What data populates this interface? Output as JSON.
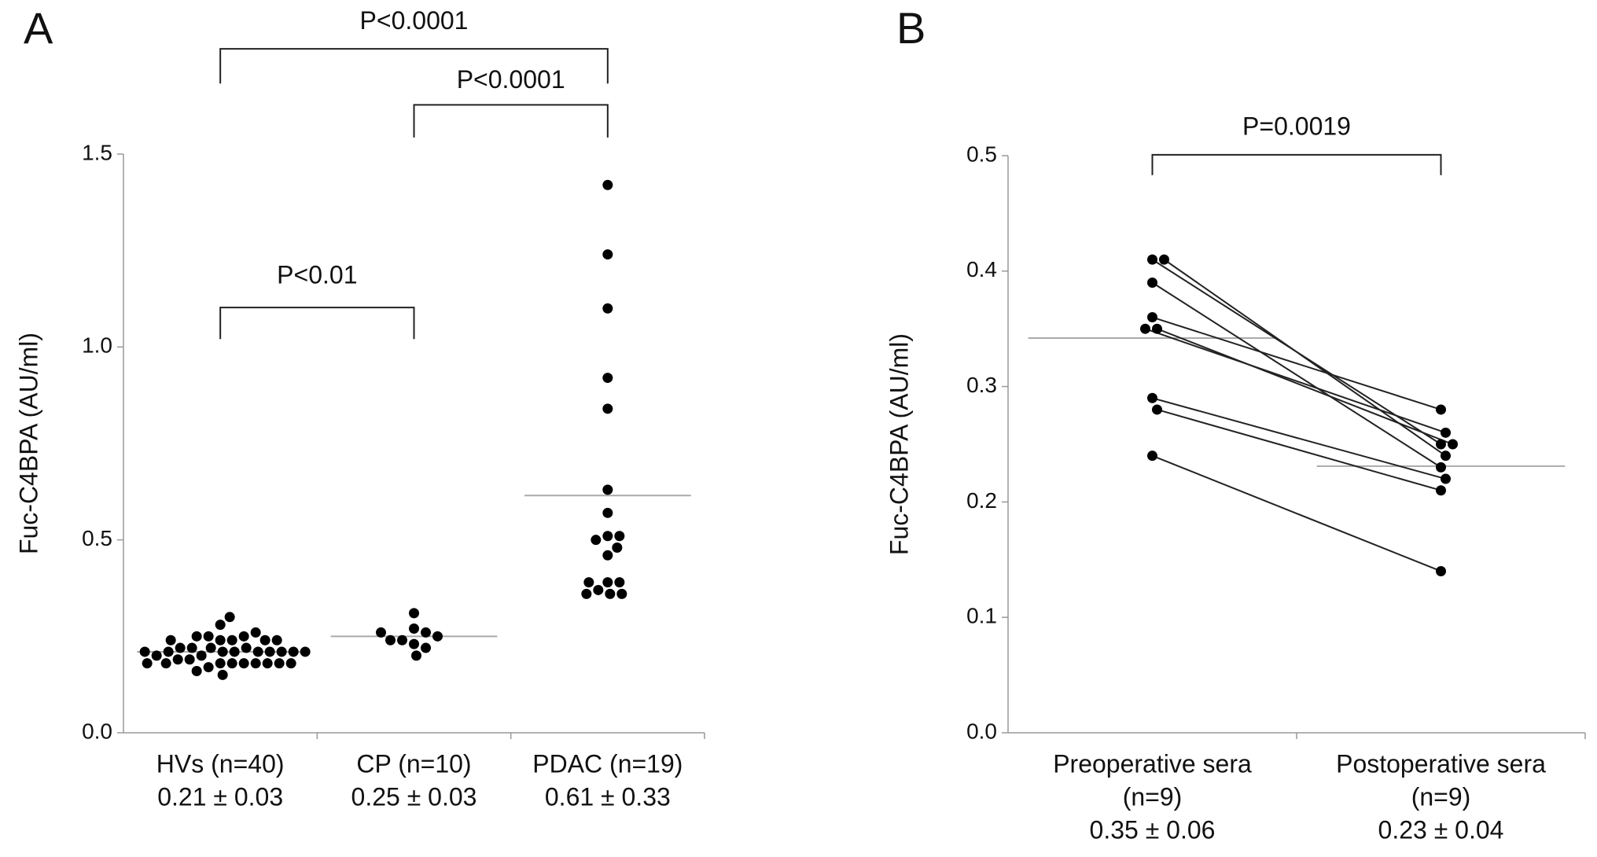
{
  "chart_data": [
    {
      "type": "strip",
      "panel_label": "A",
      "ylabel": "Fuc-C4BPA (AU/ml)",
      "categories": [
        [
          "HVs (n=40)",
          "0.21 ± 0.03"
        ],
        [
          "CP (n=10)",
          "0.25 ± 0.03"
        ],
        [
          "PDAC (n=19)",
          "0.61 ± 0.33"
        ]
      ],
      "values": [
        [
          0.24,
          0.21,
          0.18,
          0.22,
          0.18,
          0.28,
          0.2,
          0.17,
          0.24,
          0.21,
          0.18,
          0.22,
          0.19,
          0.16,
          0.25,
          0.21,
          0.18,
          0.3,
          0.22,
          0.19,
          0.15,
          0.25,
          0.21,
          0.18,
          0.25,
          0.22,
          0.18,
          0.26,
          0.21,
          0.18,
          0.24,
          0.2,
          0.18,
          0.24,
          0.21,
          0.18,
          0.24,
          0.21,
          0.21,
          0.21
        ],
        [
          0.27,
          0.23,
          0.26,
          0.24,
          0.31,
          0.22,
          0.2,
          0.25,
          0.24,
          0.26
        ],
        [
          1.42,
          1.24,
          1.1,
          0.92,
          0.84,
          0.63,
          0.57,
          0.51,
          0.51,
          0.5,
          0.46,
          0.48,
          0.39,
          0.39,
          0.37,
          0.36,
          0.36,
          0.36,
          0.39
        ]
      ],
      "means": [
        0.21,
        0.25,
        0.615
      ],
      "ylim": [
        0,
        1.5
      ],
      "yticks": [
        {
          "value": 0,
          "label": "0.0"
        },
        0.5,
        {
          "value": 1,
          "label": "1.0"
        },
        1.5
      ],
      "brackets": [
        {
          "from": 0,
          "to": 2,
          "label": "P<0.0001"
        },
        {
          "from": 1,
          "to": 2,
          "label": "P<0.0001"
        },
        {
          "from": 0,
          "to": 1,
          "label": "P<0.01"
        }
      ],
      "color": "#000000",
      "mean_color": "#aaaaaa"
    },
    {
      "type": "paired",
      "panel_label": "B",
      "ylabel": "Fuc-C4BPA (AU/ml)",
      "categories": [
        [
          "Preoperative sera",
          "(n=9)",
          "0.35 ± 0.06"
        ],
        [
          "Postoperative sera",
          "(n=9)",
          "0.23 ± 0.04"
        ]
      ],
      "values": [
        [
          0.41,
          0.41,
          0.39,
          0.36,
          0.35,
          0.35,
          0.29,
          0.28,
          0.24
        ],
        [
          0.25,
          0.24,
          0.23,
          0.28,
          0.25,
          0.26,
          0.22,
          0.21,
          0.14
        ]
      ],
      "means": [
        0.342,
        0.231
      ],
      "ylim": [
        0,
        0.5
      ],
      "yticks": [
        {
          "value": 0,
          "label": "0.0"
        },
        0.1,
        0.2,
        0.3,
        0.4,
        0.5
      ],
      "brackets": [
        {
          "from": 0,
          "to": 1,
          "label": "P=0.0019"
        }
      ],
      "color": "#000000",
      "mean_color": "#aaaaaa"
    }
  ]
}
